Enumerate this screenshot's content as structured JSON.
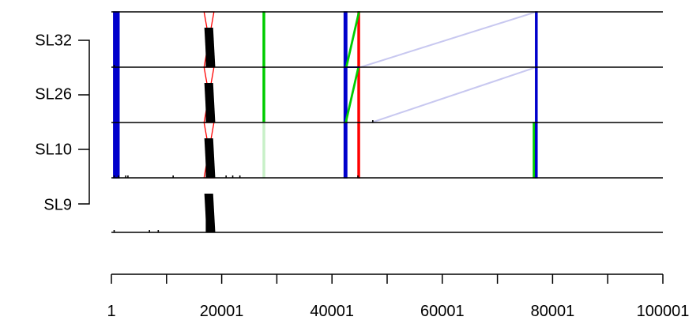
{
  "chart_data": {
    "type": "synteny",
    "tracks": [
      "SL32",
      "SL26",
      "SL10",
      "SL9"
    ],
    "xlim": [
      1,
      100001
    ],
    "x_ticks": [
      1,
      10001,
      20001,
      30001,
      40001,
      50001,
      60001,
      70001,
      80001,
      90001,
      100001
    ],
    "x_tick_labels": [
      "1",
      "20001",
      "40001",
      "60001",
      "80001",
      "100001"
    ],
    "x_tick_label_positions": [
      1,
      20001,
      40001,
      60001,
      80001,
      100001
    ],
    "tree_grouping": [
      [
        "SL32",
        "SL26",
        "SL10"
      ],
      "SL9"
    ],
    "colors": {
      "forward": "#0000cc",
      "reverse": "#ff0000",
      "similar": "#00cc00",
      "faint_forward": "#c8c8f0",
      "faint_similar": "#c8f0c8",
      "feature": "#000000"
    },
    "links": [
      {
        "pair": [
          "SL32",
          "SL26"
        ],
        "top": [
          400,
          1400
        ],
        "bottom": [
          400,
          1400
        ],
        "color": "forward"
      },
      {
        "pair": [
          "SL26",
          "SL10"
        ],
        "top": [
          400,
          1400
        ],
        "bottom": [
          400,
          1400
        ],
        "color": "forward"
      },
      {
        "pair": [
          "SL10",
          "SL9"
        ],
        "top": [
          400,
          1400
        ],
        "bottom": [
          400,
          1400
        ],
        "color": "forward"
      },
      {
        "pair": [
          "SL32",
          "SL26"
        ],
        "top": [
          16800,
          18600
        ],
        "bottom": [
          16800,
          18600
        ],
        "color": "reverse",
        "cross": true
      },
      {
        "pair": [
          "SL26",
          "SL10"
        ],
        "top": [
          16800,
          18600
        ],
        "bottom": [
          16800,
          18600
        ],
        "color": "reverse",
        "cross": true
      },
      {
        "pair": [
          "SL10",
          "SL9"
        ],
        "top": [
          16800,
          18600
        ],
        "bottom": [
          16800,
          18600
        ],
        "color": "reverse",
        "cross": true
      },
      {
        "pair": [
          "SL32",
          "SL26"
        ],
        "top": [
          27500,
          27800
        ],
        "bottom": [
          27500,
          27800
        ],
        "color": "similar"
      },
      {
        "pair": [
          "SL26",
          "SL10"
        ],
        "top": [
          27500,
          27800
        ],
        "bottom": [
          27500,
          27800
        ],
        "color": "similar"
      },
      {
        "pair": [
          "SL10",
          "SL9"
        ],
        "top": [
          27500,
          27800
        ],
        "bottom": [
          27500,
          27800
        ],
        "color": "faint_similar"
      },
      {
        "pair": [
          "SL32",
          "SL26"
        ],
        "top": [
          42200,
          42700
        ],
        "bottom": [
          42200,
          42700
        ],
        "color": "forward"
      },
      {
        "pair": [
          "SL26",
          "SL10"
        ],
        "top": [
          42200,
          42700
        ],
        "bottom": [
          42200,
          42700
        ],
        "color": "forward"
      },
      {
        "pair": [
          "SL10",
          "SL9"
        ],
        "top": [
          42200,
          42700
        ],
        "bottom": [
          42200,
          42700
        ],
        "color": "forward"
      },
      {
        "pair": [
          "SL32",
          "SL26"
        ],
        "top": [
          44700,
          45000
        ],
        "bottom": [
          44700,
          45000
        ],
        "color": "reverse"
      },
      {
        "pair": [
          "SL26",
          "SL10"
        ],
        "top": [
          44700,
          45000
        ],
        "bottom": [
          44700,
          45000
        ],
        "color": "reverse"
      },
      {
        "pair": [
          "SL10",
          "SL9"
        ],
        "top": [
          44700,
          45000
        ],
        "bottom": [
          44700,
          45000
        ],
        "color": "reverse"
      },
      {
        "pair": [
          "SL32",
          "SL26"
        ],
        "top": [
          44800,
          45000
        ],
        "bottom": [
          42500,
          42700
        ],
        "color": "similar"
      },
      {
        "pair": [
          "SL26",
          "SL10"
        ],
        "top": [
          44700,
          44900
        ],
        "bottom": [
          42400,
          42600
        ],
        "color": "similar"
      },
      {
        "pair": [
          "SL32",
          "SL26"
        ],
        "top": [
          76900,
          77200
        ],
        "bottom": [
          45000,
          45300
        ],
        "color": "faint_forward"
      },
      {
        "pair": [
          "SL26",
          "SL10"
        ],
        "top": [
          76900,
          77200
        ],
        "bottom": [
          47000,
          47300
        ],
        "color": "faint_forward"
      },
      {
        "pair": [
          "SL32",
          "SL26"
        ],
        "top": [
          76900,
          77200
        ],
        "bottom": [
          76900,
          77200
        ],
        "color": "forward"
      },
      {
        "pair": [
          "SL26",
          "SL10"
        ],
        "top": [
          76900,
          77200
        ],
        "bottom": [
          76900,
          77200
        ],
        "color": "forward"
      },
      {
        "pair": [
          "SL10",
          "SL9"
        ],
        "top": [
          76500,
          76800
        ],
        "bottom": [
          76500,
          76800
        ],
        "color": "similar"
      },
      {
        "pair": [
          "SL10",
          "SL9"
        ],
        "top": [
          76900,
          77200
        ],
        "bottom": [
          76900,
          77200
        ],
        "color": "forward"
      },
      {
        "pair": [
          "SL32",
          "SL26"
        ],
        "top": [
          42200,
          45000
        ],
        "bottom": [
          42200,
          45000
        ],
        "color": "forward",
        "band": true
      }
    ],
    "features": [
      {
        "track": "SL32",
        "start": 17000,
        "end": 18300,
        "dense": true
      },
      {
        "track": "SL26",
        "start": 17000,
        "end": 18300,
        "dense": true
      },
      {
        "track": "SL10",
        "start": 17000,
        "end": 18300,
        "dense": true
      },
      {
        "track": "SL9",
        "start": 17000,
        "end": 18300,
        "dense": true
      },
      {
        "track": "SL26",
        "start": 47400,
        "end": 47500
      },
      {
        "track": "SL32",
        "start": 500,
        "end": 700
      },
      {
        "track": "SL10",
        "start": 500,
        "end": 700
      },
      {
        "track": "SL10",
        "start": 1300,
        "end": 1500
      },
      {
        "track": "SL10",
        "start": 2600,
        "end": 2800
      },
      {
        "track": "SL10",
        "start": 3000,
        "end": 3200
      },
      {
        "track": "SL10",
        "start": 11200,
        "end": 11400
      },
      {
        "track": "SL10",
        "start": 20800,
        "end": 21000
      },
      {
        "track": "SL10",
        "start": 22000,
        "end": 22200
      },
      {
        "track": "SL10",
        "start": 23300,
        "end": 23500
      },
      {
        "track": "SL10",
        "start": 44700,
        "end": 44900
      },
      {
        "track": "SL9",
        "start": 500,
        "end": 700
      },
      {
        "track": "SL9",
        "start": 6900,
        "end": 7100
      },
      {
        "track": "SL9",
        "start": 8500,
        "end": 8700
      }
    ]
  }
}
